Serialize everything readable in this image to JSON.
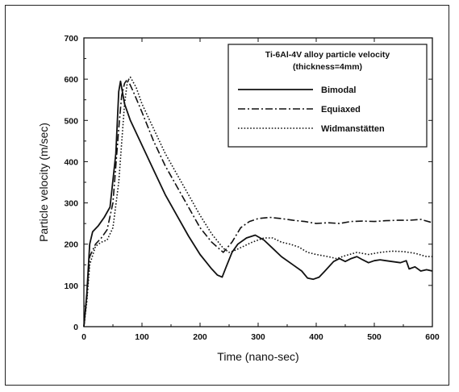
{
  "chart_data": {
    "type": "line",
    "xlabel": "Time (nano-sec)",
    "ylabel": "Particle velocity (m/sec)",
    "xlim": [
      0,
      600
    ],
    "ylim": [
      0,
      700
    ],
    "xticks": [
      "0",
      "100",
      "200",
      "300",
      "400",
      "500",
      "600"
    ],
    "yticks": [
      "0",
      "100",
      "200",
      "300",
      "400",
      "500",
      "600",
      "700"
    ],
    "grid": false,
    "legend_position": "top-right",
    "legend_title_lines": [
      "Ti-6Al-4V alloy particle velocity",
      "(thickness=4mm)"
    ],
    "series": [
      {
        "name": "Bimodal",
        "style": "solid",
        "color": "#111111",
        "points": [
          [
            0,
            0
          ],
          [
            5,
            80
          ],
          [
            10,
            200
          ],
          [
            15,
            230
          ],
          [
            25,
            245
          ],
          [
            35,
            265
          ],
          [
            45,
            290
          ],
          [
            55,
            420
          ],
          [
            60,
            570
          ],
          [
            63,
            595
          ],
          [
            70,
            540
          ],
          [
            80,
            500
          ],
          [
            100,
            440
          ],
          [
            120,
            380
          ],
          [
            140,
            320
          ],
          [
            160,
            270
          ],
          [
            180,
            220
          ],
          [
            200,
            175
          ],
          [
            220,
            140
          ],
          [
            230,
            125
          ],
          [
            238,
            120
          ],
          [
            245,
            145
          ],
          [
            255,
            180
          ],
          [
            265,
            200
          ],
          [
            280,
            215
          ],
          [
            295,
            222
          ],
          [
            310,
            210
          ],
          [
            325,
            190
          ],
          [
            340,
            170
          ],
          [
            360,
            150
          ],
          [
            375,
            135
          ],
          [
            385,
            118
          ],
          [
            395,
            115
          ],
          [
            405,
            120
          ],
          [
            415,
            135
          ],
          [
            430,
            158
          ],
          [
            440,
            165
          ],
          [
            450,
            158
          ],
          [
            460,
            165
          ],
          [
            470,
            170
          ],
          [
            480,
            162
          ],
          [
            490,
            155
          ],
          [
            500,
            160
          ],
          [
            510,
            162
          ],
          [
            520,
            160
          ],
          [
            530,
            158
          ],
          [
            545,
            155
          ],
          [
            555,
            160
          ],
          [
            560,
            140
          ],
          [
            570,
            145
          ],
          [
            580,
            135
          ],
          [
            590,
            138
          ],
          [
            600,
            135
          ]
        ]
      },
      {
        "name": "Equiaxed",
        "style": "dashdot",
        "color": "#111111",
        "points": [
          [
            0,
            0
          ],
          [
            5,
            70
          ],
          [
            10,
            170
          ],
          [
            20,
            200
          ],
          [
            30,
            215
          ],
          [
            40,
            235
          ],
          [
            50,
            300
          ],
          [
            60,
            480
          ],
          [
            65,
            560
          ],
          [
            70,
            590
          ],
          [
            75,
            600
          ],
          [
            85,
            570
          ],
          [
            100,
            520
          ],
          [
            120,
            450
          ],
          [
            140,
            390
          ],
          [
            160,
            340
          ],
          [
            180,
            290
          ],
          [
            200,
            240
          ],
          [
            220,
            205
          ],
          [
            240,
            180
          ],
          [
            255,
            205
          ],
          [
            270,
            240
          ],
          [
            285,
            255
          ],
          [
            300,
            262
          ],
          [
            320,
            265
          ],
          [
            340,
            262
          ],
          [
            360,
            258
          ],
          [
            380,
            255
          ],
          [
            400,
            250
          ],
          [
            420,
            252
          ],
          [
            440,
            250
          ],
          [
            460,
            255
          ],
          [
            480,
            256
          ],
          [
            500,
            255
          ],
          [
            520,
            257
          ],
          [
            540,
            258
          ],
          [
            560,
            258
          ],
          [
            580,
            260
          ],
          [
            600,
            252
          ]
        ]
      },
      {
        "name": "Widmanstätten",
        "style": "dotted",
        "color": "#111111",
        "points": [
          [
            0,
            0
          ],
          [
            5,
            60
          ],
          [
            10,
            150
          ],
          [
            20,
            195
          ],
          [
            30,
            205
          ],
          [
            40,
            210
          ],
          [
            50,
            240
          ],
          [
            60,
            350
          ],
          [
            70,
            540
          ],
          [
            75,
            595
          ],
          [
            80,
            605
          ],
          [
            90,
            580
          ],
          [
            100,
            540
          ],
          [
            120,
            480
          ],
          [
            140,
            420
          ],
          [
            160,
            370
          ],
          [
            180,
            320
          ],
          [
            200,
            270
          ],
          [
            220,
            225
          ],
          [
            240,
            190
          ],
          [
            250,
            180
          ],
          [
            260,
            185
          ],
          [
            275,
            195
          ],
          [
            290,
            205
          ],
          [
            310,
            215
          ],
          [
            325,
            215
          ],
          [
            340,
            205
          ],
          [
            355,
            200
          ],
          [
            370,
            193
          ],
          [
            385,
            180
          ],
          [
            400,
            175
          ],
          [
            420,
            170
          ],
          [
            435,
            165
          ],
          [
            450,
            172
          ],
          [
            470,
            180
          ],
          [
            490,
            175
          ],
          [
            510,
            180
          ],
          [
            530,
            183
          ],
          [
            550,
            182
          ],
          [
            570,
            178
          ],
          [
            590,
            170
          ],
          [
            600,
            170
          ]
        ]
      }
    ]
  }
}
